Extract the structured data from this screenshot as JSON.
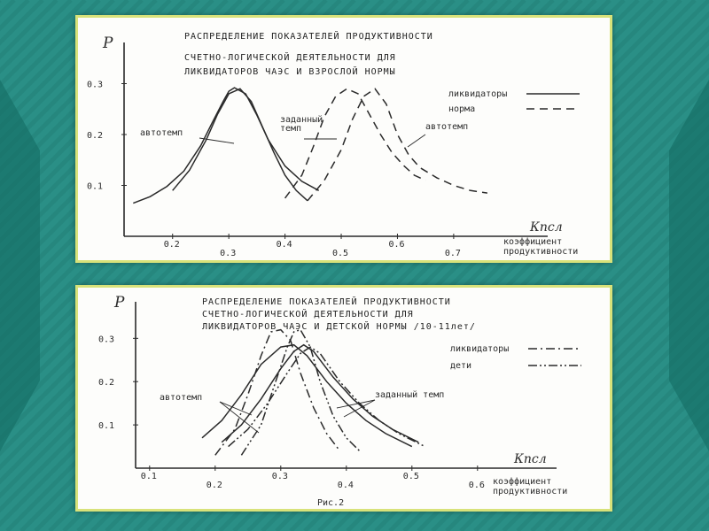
{
  "background": {
    "base_color": "#2a8f86",
    "stripe_color": "#1f7a72",
    "arrow_color": "#177068",
    "panel_border": "#d8e27a"
  },
  "chart_data": [
    {
      "type": "line",
      "title_lines": [
        "РАСПРЕДЕЛЕНИЕ ПОКАЗАТЕЛЕЙ ПРОДУКТИВНОСТИ",
        "СЧЕТНО-ЛОГИЧЕСКОЙ ДЕЯТЕЛЬНОСТИ ДЛЯ",
        "ЛИКВИДАТОРОВ ЧАЭС И ВЗРОСЛОЙ НОРМЫ"
      ],
      "ylabel": "Р",
      "xlabel": "Кпсл",
      "xlabel_text": [
        "коэффициент",
        "продуктивности"
      ],
      "xlim": [
        0.12,
        0.82
      ],
      "ylim": [
        0,
        0.36
      ],
      "xticks": [
        "0.2",
        "0.3",
        "0.4",
        "0.5",
        "0.6",
        "0.7"
      ],
      "yticks": [
        "0.1",
        "0.2",
        "0.3"
      ],
      "legend": [
        {
          "label": "ликвидаторы",
          "style": "solid"
        },
        {
          "label": "норма",
          "style": "dashed"
        }
      ],
      "annotations": [
        "автотемп",
        "заданный темп",
        "автотемп"
      ],
      "series": [
        {
          "group": "ликвидаторы",
          "style": "solid",
          "x": [
            0.13,
            0.16,
            0.19,
            0.22,
            0.25,
            0.27,
            0.29,
            0.3,
            0.31,
            0.33,
            0.35,
            0.37,
            0.4,
            0.43,
            0.46
          ],
          "y": [
            0.065,
            0.078,
            0.098,
            0.128,
            0.178,
            0.222,
            0.265,
            0.285,
            0.292,
            0.28,
            0.238,
            0.19,
            0.138,
            0.108,
            0.09
          ]
        },
        {
          "group": "ликвидаторы",
          "style": "solid",
          "x": [
            0.2,
            0.23,
            0.26,
            0.28,
            0.3,
            0.32,
            0.34,
            0.36,
            0.38,
            0.4,
            0.42,
            0.44
          ],
          "y": [
            0.09,
            0.13,
            0.19,
            0.24,
            0.28,
            0.29,
            0.265,
            0.215,
            0.165,
            0.12,
            0.09,
            0.07
          ]
        },
        {
          "group": "норма",
          "style": "dashed",
          "x": [
            0.4,
            0.43,
            0.45,
            0.47,
            0.49,
            0.51,
            0.53,
            0.55,
            0.57,
            0.59,
            0.61,
            0.63,
            0.65
          ],
          "y": [
            0.075,
            0.12,
            0.175,
            0.235,
            0.275,
            0.29,
            0.28,
            0.24,
            0.2,
            0.165,
            0.14,
            0.12,
            0.11
          ]
        },
        {
          "group": "норма",
          "style": "dashed",
          "x": [
            0.44,
            0.47,
            0.5,
            0.52,
            0.54,
            0.56,
            0.58,
            0.6,
            0.62,
            0.64,
            0.67,
            0.7,
            0.73,
            0.76
          ],
          "y": [
            0.07,
            0.11,
            0.17,
            0.23,
            0.275,
            0.29,
            0.26,
            0.2,
            0.16,
            0.135,
            0.115,
            0.1,
            0.09,
            0.085
          ]
        }
      ]
    },
    {
      "type": "line",
      "title_lines": [
        "РАСПРЕДЕЛЕНИЕ ПОКАЗАТЕЛЕЙ ПРОДУКТИВНОСТИ",
        "СЧЕТНО-ЛОГИЧЕСКОЙ ДЕЯТЕЛЬНОСТИ ДЛЯ",
        "ЛИКВИДАТОРОВ ЧАЭС И ДЕТСКОЙ НОРМЫ /10-11лет/"
      ],
      "ylabel": "Р",
      "xlabel": "Кпсл",
      "xlabel_text": [
        "коэффициент",
        "продуктивности"
      ],
      "caption": "Рис.2",
      "xlim": [
        0.08,
        0.68
      ],
      "ylim": [
        0,
        0.36
      ],
      "xticks": [
        "0.1",
        "0.2",
        "0.3",
        "0.4",
        "0.5",
        "0.6"
      ],
      "yticks": [
        "0.1",
        "0.2",
        "0.3"
      ],
      "legend": [
        {
          "label": "ликвидаторы",
          "style": "dashdot"
        },
        {
          "label": "дети",
          "style": "dashdotdot"
        }
      ],
      "annotations": [
        "автотемп",
        "заданный темп"
      ],
      "series": [
        {
          "group": "ликвидаторы",
          "style": "dashdot",
          "x": [
            0.2,
            0.23,
            0.25,
            0.27,
            0.285,
            0.3,
            0.315,
            0.33,
            0.35,
            0.37,
            0.39
          ],
          "y": [
            0.03,
            0.09,
            0.17,
            0.26,
            0.315,
            0.32,
            0.295,
            0.22,
            0.14,
            0.08,
            0.04
          ]
        },
        {
          "group": "дети",
          "style": "dashdotdot",
          "x": [
            0.24,
            0.27,
            0.29,
            0.31,
            0.32,
            0.33,
            0.345,
            0.36,
            0.38,
            0.4,
            0.42
          ],
          "y": [
            0.03,
            0.1,
            0.19,
            0.28,
            0.315,
            0.32,
            0.28,
            0.2,
            0.12,
            0.07,
            0.04
          ]
        },
        {
          "group": "ликвидаторы",
          "style": "solid",
          "x": [
            0.18,
            0.21,
            0.24,
            0.27,
            0.3,
            0.32,
            0.34,
            0.37,
            0.4,
            0.43,
            0.46,
            0.5
          ],
          "y": [
            0.07,
            0.11,
            0.17,
            0.24,
            0.28,
            0.285,
            0.26,
            0.2,
            0.15,
            0.11,
            0.08,
            0.05
          ]
        },
        {
          "group": "ликвидаторы",
          "style": "solid",
          "x": [
            0.21,
            0.24,
            0.27,
            0.3,
            0.32,
            0.335,
            0.35,
            0.38,
            0.41,
            0.44,
            0.47,
            0.51
          ],
          "y": [
            0.06,
            0.1,
            0.16,
            0.23,
            0.27,
            0.285,
            0.27,
            0.21,
            0.16,
            0.12,
            0.09,
            0.06
          ]
        },
        {
          "group": "дети",
          "style": "dashdotdot",
          "x": [
            0.22,
            0.25,
            0.28,
            0.31,
            0.33,
            0.345,
            0.36,
            0.39,
            0.42,
            0.45,
            0.48,
            0.52
          ],
          "y": [
            0.05,
            0.09,
            0.15,
            0.22,
            0.265,
            0.28,
            0.265,
            0.2,
            0.15,
            0.11,
            0.08,
            0.05
          ]
        }
      ]
    }
  ]
}
